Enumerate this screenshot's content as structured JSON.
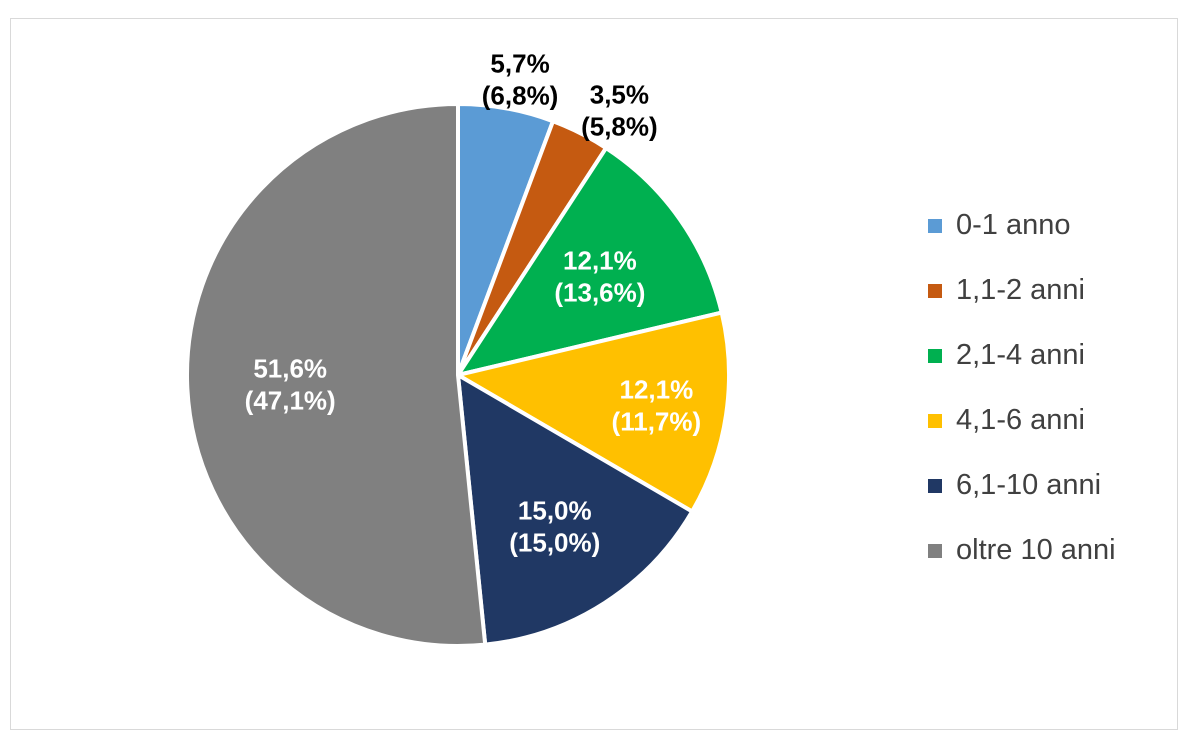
{
  "chart_data": {
    "type": "pie",
    "categories": [
      "0-1 anno",
      "1,1-2 anni",
      "2,1-4 anni",
      "4,1-6 anni",
      "6,1-10 anni",
      "oltre 10 anni"
    ],
    "values": [
      5.7,
      3.5,
      12.1,
      12.1,
      15.0,
      51.6
    ],
    "secondary_values": [
      6.8,
      5.8,
      13.6,
      11.7,
      15.0,
      47.1
    ],
    "labels": [
      [
        "5,7%",
        "(6,8%)"
      ],
      [
        "3,5%",
        "(5,8%)"
      ],
      [
        "12,1%",
        "(13,6%)"
      ],
      [
        "12,1%",
        "(11,7%)"
      ],
      [
        "15,0%",
        "(15,0%)"
      ],
      [
        "51,6%",
        "(47,1%)"
      ]
    ],
    "colors": [
      "#5b9bd5",
      "#c55a11",
      "#00b050",
      "#ffc000",
      "#203864",
      "#808080"
    ],
    "label_colors": [
      "#000000",
      "#000000",
      "#ffffff",
      "#ffffff",
      "#ffffff",
      "#ffffff"
    ],
    "legend_position": "right",
    "start_angle_deg": 0,
    "direction": "clockwise"
  }
}
